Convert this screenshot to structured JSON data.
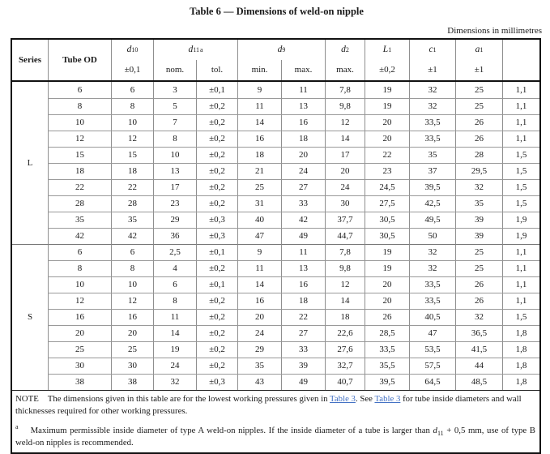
{
  "page": {
    "title": "Table 6 — Dimensions of weld-on nipple",
    "units_note": "Dimensions in millimetres"
  },
  "table": {
    "header": {
      "series": "Series",
      "tube_od": "Tube OD",
      "d10": {
        "base": "d",
        "sub": "10",
        "line2": "±0,1"
      },
      "d11": {
        "base": "d",
        "sub": "11",
        "sup": "a",
        "nom": "nom.",
        "tol": "tol."
      },
      "d9": {
        "base": "d",
        "sub": "9",
        "min": "min.",
        "max": "max."
      },
      "d2": {
        "base": "d",
        "sub": "2",
        "line2": "max."
      },
      "L1": {
        "base": "L",
        "sub": "1",
        "line2": "±0,2"
      },
      "c1": {
        "base": "c",
        "sub": "1",
        "line2": "±1"
      },
      "a1": {
        "base": "a",
        "sub": "1",
        "line2": "±1"
      },
      "last": ""
    },
    "series": [
      {
        "label": "L",
        "rows": [
          [
            "6",
            "6",
            "3",
            "±0,1",
            "9",
            "11",
            "7,8",
            "19",
            "32",
            "25",
            "1,1"
          ],
          [
            "8",
            "8",
            "5",
            "±0,2",
            "11",
            "13",
            "9,8",
            "19",
            "32",
            "25",
            "1,1"
          ],
          [
            "10",
            "10",
            "7",
            "±0,2",
            "14",
            "16",
            "12",
            "20",
            "33,5",
            "26",
            "1,1"
          ],
          [
            "12",
            "12",
            "8",
            "±0,2",
            "16",
            "18",
            "14",
            "20",
            "33,5",
            "26",
            "1,1"
          ],
          [
            "15",
            "15",
            "10",
            "±0,2",
            "18",
            "20",
            "17",
            "22",
            "35",
            "28",
            "1,5"
          ],
          [
            "18",
            "18",
            "13",
            "±0,2",
            "21",
            "24",
            "20",
            "23",
            "37",
            "29,5",
            "1,5"
          ],
          [
            "22",
            "22",
            "17",
            "±0,2",
            "25",
            "27",
            "24",
            "24,5",
            "39,5",
            "32",
            "1,5"
          ],
          [
            "28",
            "28",
            "23",
            "±0,2",
            "31",
            "33",
            "30",
            "27,5",
            "42,5",
            "35",
            "1,5"
          ],
          [
            "35",
            "35",
            "29",
            "±0,3",
            "40",
            "42",
            "37,7",
            "30,5",
            "49,5",
            "39",
            "1,9"
          ],
          [
            "42",
            "42",
            "36",
            "±0,3",
            "47",
            "49",
            "44,7",
            "30,5",
            "50",
            "39",
            "1,9"
          ]
        ]
      },
      {
        "label": "S",
        "rows": [
          [
            "6",
            "6",
            "2,5",
            "±0,1",
            "9",
            "11",
            "7,8",
            "19",
            "32",
            "25",
            "1,1"
          ],
          [
            "8",
            "8",
            "4",
            "±0,2",
            "11",
            "13",
            "9,8",
            "19",
            "32",
            "25",
            "1,1"
          ],
          [
            "10",
            "10",
            "6",
            "±0,1",
            "14",
            "16",
            "12",
            "20",
            "33,5",
            "26",
            "1,1"
          ],
          [
            "12",
            "12",
            "8",
            "±0,2",
            "16",
            "18",
            "14",
            "20",
            "33,5",
            "26",
            "1,1"
          ],
          [
            "16",
            "16",
            "11",
            "±0,2",
            "20",
            "22",
            "18",
            "26",
            "40,5",
            "32",
            "1,5"
          ],
          [
            "20",
            "20",
            "14",
            "±0,2",
            "24",
            "27",
            "22,6",
            "28,5",
            "47",
            "36,5",
            "1,8"
          ],
          [
            "25",
            "25",
            "19",
            "±0,2",
            "29",
            "33",
            "27,6",
            "33,5",
            "53,5",
            "41,5",
            "1,8"
          ],
          [
            "30",
            "30",
            "24",
            "±0,2",
            "35",
            "39",
            "32,7",
            "35,5",
            "57,5",
            "44",
            "1,8"
          ],
          [
            "38",
            "38",
            "32",
            "±0,3",
            "43",
            "49",
            "40,7",
            "39,5",
            "64,5",
            "48,5",
            "1,8"
          ]
        ]
      }
    ],
    "note": {
      "label": "NOTE",
      "part1": "The dimensions given in this table are for the lowest working pressures given in ",
      "link1": "Table 3",
      "part2": ". See ",
      "link2": "Table 3",
      "part3": " for tube inside diameters and wall thicknesses required for other working pressures."
    },
    "footnote": {
      "marker": "a",
      "part1": "Maximum permissible inside diameter of type A weld-on nipples. If the inside diameter of a tube is larger than ",
      "var_base": "d",
      "var_sub": "11",
      "part2": " + 0,5 mm, use of type B weld-on nipples is recommended."
    }
  },
  "colors": {
    "link": "#4472C4",
    "border_dark": "#111111",
    "border_light": "#8f8f8f"
  }
}
